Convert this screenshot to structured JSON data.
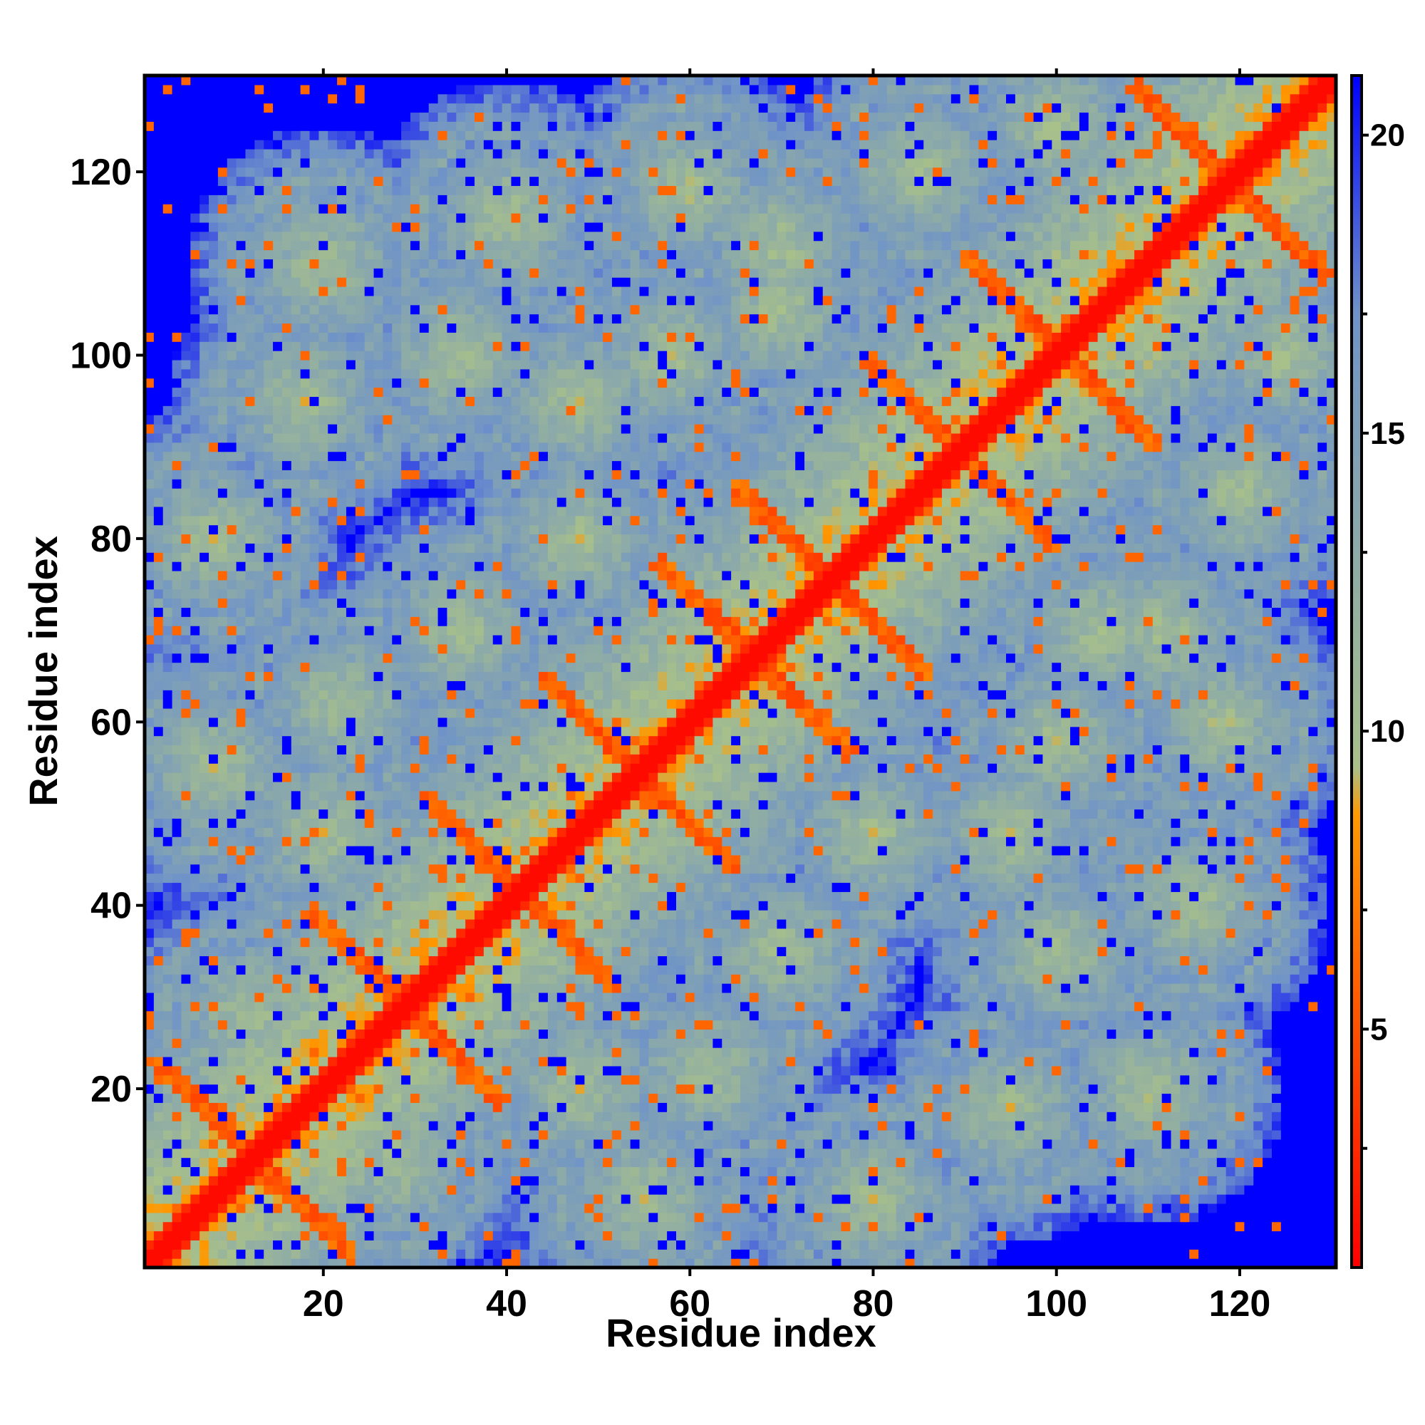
{
  "chart_data": {
    "type": "heatmap",
    "title": "",
    "xlabel": "Residue index",
    "ylabel": "Residue index",
    "xlim": [
      1,
      130
    ],
    "ylim": [
      1,
      130
    ],
    "x_ticks": [
      20,
      40,
      60,
      80,
      100,
      120
    ],
    "y_ticks": [
      20,
      40,
      60,
      80,
      100,
      120
    ],
    "colorbar": {
      "ticks": [
        5,
        10,
        15,
        20
      ],
      "range": [
        1,
        21
      ],
      "colors": [
        "#ff0000",
        "#ff9900",
        "#a8c08a",
        "#6f93c8",
        "#0000ff"
      ],
      "stops": [
        0,
        0.38,
        0.42,
        0.8,
        1
      ]
    },
    "grid": false,
    "legend": "none",
    "description_of_values": "symmetric residue-residue distance map; values near diagonal ~1-3 (red), secondary-structure contacts ~4-8 (orange), ~9-18 (green-grey/blue-grey), >=21 (blue)"
  }
}
